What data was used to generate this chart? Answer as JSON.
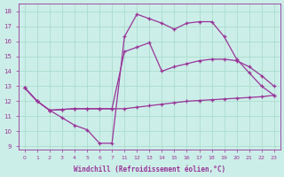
{
  "background_color": "#cceee8",
  "line_color": "#993399",
  "grid_color": "#aaddcc",
  "xlabel": "Windchill (Refroidissement éolien,°C)",
  "ylim": [
    8.8,
    18.5
  ],
  "yticks": [
    9,
    10,
    11,
    12,
    13,
    14,
    15,
    16,
    17,
    18
  ],
  "xtick_labels": [
    "0",
    "1",
    "2",
    "3",
    "4",
    "5",
    "6",
    "7",
    "11",
    "12",
    "13",
    "14",
    "15",
    "16",
    "17",
    "18",
    "19",
    "20",
    "21",
    "22",
    "23"
  ],
  "series": [
    {
      "y": [
        12.9,
        12.0,
        11.4,
        10.9,
        10.4,
        10.1,
        9.2,
        9.2,
        16.3,
        17.8,
        17.5,
        17.2,
        16.8,
        17.2,
        17.3,
        17.3,
        16.3,
        14.8,
        13.9,
        13.0,
        12.4
      ]
    },
    {
      "y": [
        12.9,
        12.0,
        11.4,
        11.45,
        11.5,
        11.5,
        11.5,
        11.5,
        11.5,
        11.6,
        11.7,
        11.8,
        11.9,
        12.0,
        12.05,
        12.1,
        12.15,
        12.2,
        12.25,
        12.3,
        12.4
      ]
    },
    {
      "y": [
        12.9,
        12.0,
        11.4,
        11.45,
        11.5,
        11.5,
        11.5,
        11.5,
        15.3,
        15.6,
        15.9,
        14.0,
        14.3,
        14.5,
        14.7,
        14.8,
        14.8,
        14.7,
        14.3,
        13.7,
        13.0
      ]
    }
  ]
}
